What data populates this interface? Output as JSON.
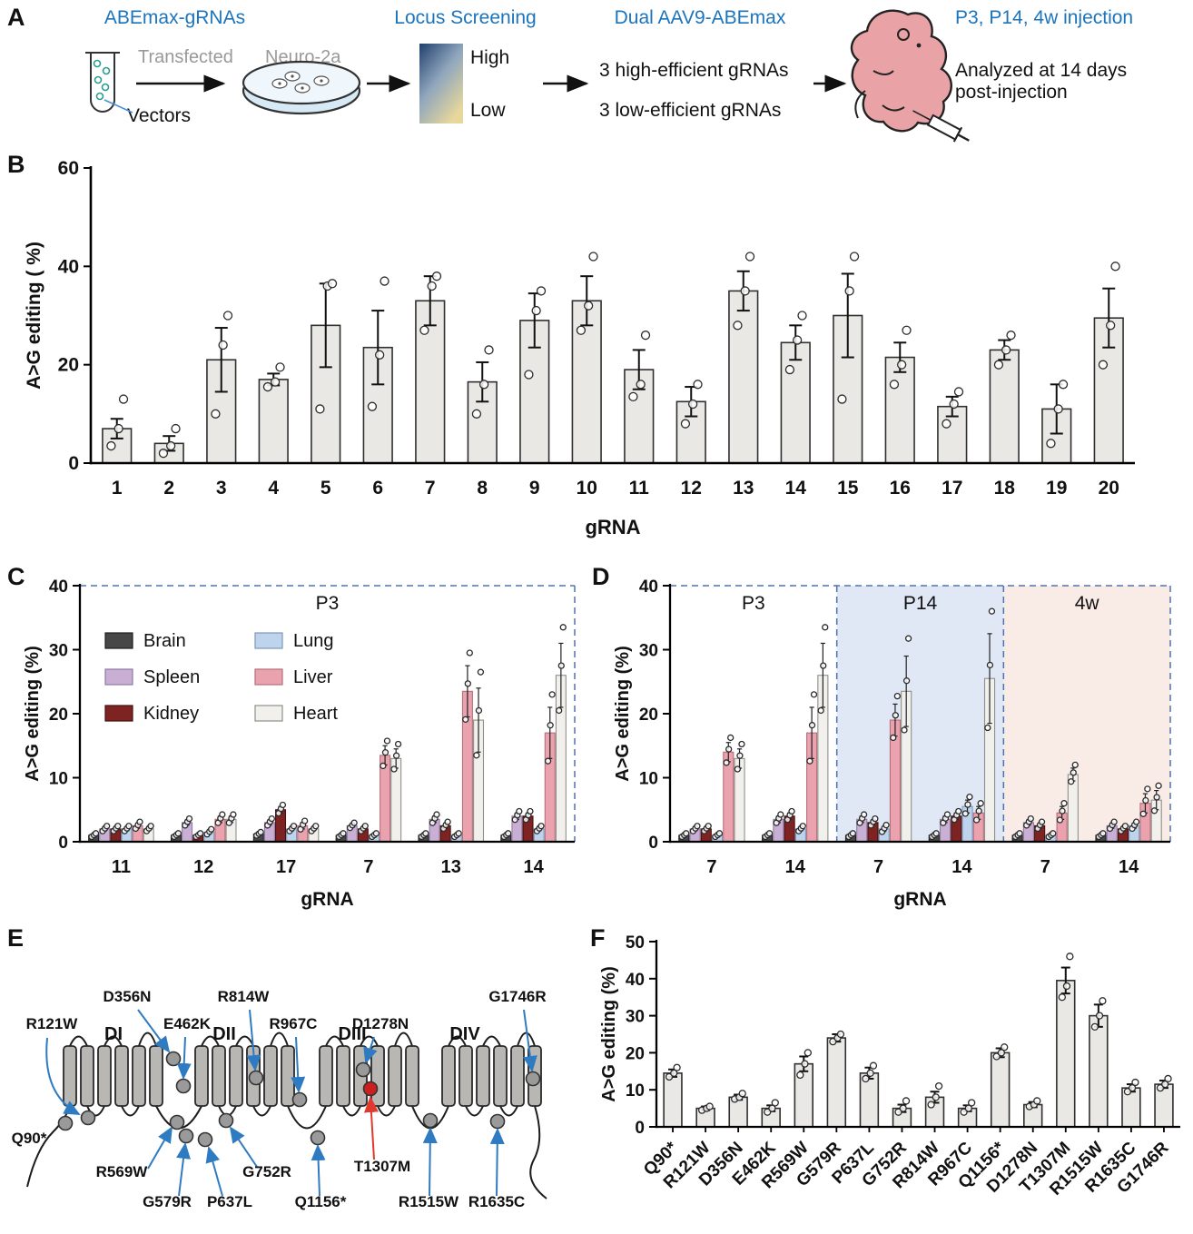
{
  "colors": {
    "accent_blue": "#1b74bc",
    "gray_text": "#999999",
    "bar_fill": "#e9e8e4",
    "dash_blue": "#5272ad",
    "p14_bg": "#e0e8f5",
    "w4_bg": "#f9ebe6",
    "arrow_blue": "#2f7bc1",
    "mutation_red": "#e0392e"
  },
  "panelA": {
    "label": "A",
    "abemax_title": "ABEmax-gRNAs",
    "transfected": "Transfected",
    "neuro2a": "Neuro-2a",
    "vectors": "Vectors",
    "locus_title": "Locus Screening",
    "high": "High",
    "low": "Low",
    "dual_title": "Dual AAV9-ABEmax",
    "line_high": "3 high-efficient gRNAs",
    "line_low": "3 low-efficient gRNAs",
    "injection_title": "P3, P14, 4w injection",
    "analyzed": "Analyzed at 14 days\npost-injection"
  },
  "panelB": {
    "label": "B"
  },
  "panelC": {
    "label": "C"
  },
  "panelD": {
    "label": "D"
  },
  "panelE": {
    "label": "E",
    "domain_labels": [
      "DI",
      "DII",
      "DIII",
      "DIV"
    ],
    "accent": "#2f7bc1",
    "red": "#e0392e",
    "mutations": [
      {
        "name": "Q90*"
      },
      {
        "name": "R121W"
      },
      {
        "name": "D356N"
      },
      {
        "name": "E462K"
      },
      {
        "name": "R569W"
      },
      {
        "name": "G579R"
      },
      {
        "name": "P637L"
      },
      {
        "name": "G752R"
      },
      {
        "name": "R814W"
      },
      {
        "name": "R967C"
      },
      {
        "name": "Q1156*"
      },
      {
        "name": "D1278N"
      },
      {
        "name": "T1307M",
        "red": true
      },
      {
        "name": "R1515W"
      },
      {
        "name": "R1635C"
      },
      {
        "name": "G1746R"
      }
    ]
  },
  "panelF": {
    "label": "F"
  },
  "chart_data": [
    {
      "id": "B",
      "type": "bar",
      "title": "",
      "xlabel": "gRNA",
      "ylabel": "A>G editing ( %)",
      "ylim": [
        0,
        60
      ],
      "yticks": [
        0,
        20,
        40,
        60
      ],
      "bar_fill": "#e9e8e4",
      "categories": [
        "1",
        "2",
        "3",
        "4",
        "5",
        "6",
        "7",
        "8",
        "9",
        "10",
        "11",
        "12",
        "13",
        "14",
        "15",
        "16",
        "17",
        "18",
        "19",
        "20"
      ],
      "values": [
        7,
        4,
        21,
        17,
        28,
        23.5,
        33,
        16.5,
        29,
        33,
        19,
        12.5,
        35,
        24.5,
        30,
        21.5,
        11.5,
        23,
        11,
        29.5
      ],
      "errors": [
        2,
        1.5,
        6.5,
        1.2,
        8.5,
        7.5,
        5,
        4,
        5.5,
        5,
        4,
        3,
        4,
        3.5,
        8.5,
        3,
        2,
        2,
        5,
        6
      ],
      "points": [
        [
          3.5,
          7,
          13
        ],
        [
          2,
          3.5,
          7
        ],
        [
          10,
          24,
          30
        ],
        [
          15.5,
          16.5,
          19.5
        ],
        [
          11,
          36,
          36.5
        ],
        [
          11.5,
          22,
          37
        ],
        [
          27,
          36,
          38
        ],
        [
          10,
          16,
          23
        ],
        [
          18,
          31,
          35
        ],
        [
          27,
          32,
          42
        ],
        [
          13.5,
          16,
          26
        ],
        [
          8,
          12,
          16
        ],
        [
          28,
          35,
          42
        ],
        [
          19,
          25,
          30
        ],
        [
          13,
          35,
          42
        ],
        [
          16,
          20,
          27
        ],
        [
          8,
          12,
          14.5
        ],
        [
          20,
          23,
          26
        ],
        [
          4,
          11,
          16
        ],
        [
          20,
          28,
          40
        ]
      ]
    },
    {
      "id": "C",
      "type": "grouped_bar",
      "title": "P3",
      "xlabel": "gRNA",
      "ylabel": "A>G editing (%)",
      "ylim": [
        0,
        40
      ],
      "yticks": [
        0,
        10,
        20,
        30,
        40
      ],
      "dashed_frame": true,
      "dash_color": "#5272ad",
      "legend": true,
      "categories": [
        "11",
        "12",
        "17",
        "7",
        "13",
        "14"
      ],
      "series": [
        {
          "name": "Brain",
          "color": "#474747",
          "stroke": "#1f1f1f",
          "values": [
            1,
            1,
            1.2,
            1,
            1,
            1
          ],
          "errors": [
            0.2,
            0.2,
            0.2,
            0.2,
            0.2,
            0.2
          ]
        },
        {
          "name": "Spleen",
          "color": "#c9afd4",
          "stroke": "#8f7aa3",
          "values": [
            2,
            3,
            3,
            2.5,
            3.5,
            4
          ],
          "errors": [
            0.3,
            0.4,
            0.4,
            0.3,
            0.5,
            0.5
          ]
        },
        {
          "name": "Kidney",
          "color": "#7d2422",
          "stroke": "#47100f",
          "values": [
            2,
            1,
            5,
            2,
            2.5,
            4
          ],
          "errors": [
            0.3,
            0.2,
            0.5,
            0.3,
            0.4,
            0.5
          ]
        },
        {
          "name": "Lung",
          "color": "#bed3ec",
          "stroke": "#7e97ba",
          "values": [
            2,
            1.5,
            2,
            1,
            1,
            2
          ],
          "errors": [
            0.3,
            0.3,
            0.3,
            0.2,
            0.2,
            0.3
          ]
        },
        {
          "name": "Liver",
          "color": "#e9a2ae",
          "stroke": "#b56f7b",
          "values": [
            2.5,
            3.5,
            2.5,
            13.5,
            23.5,
            17
          ],
          "errors": [
            0.4,
            0.5,
            0.5,
            1.5,
            4,
            4
          ]
        },
        {
          "name": "Heart",
          "color": "#f2f0ed",
          "stroke": "#8f8f89",
          "values": [
            2,
            3.5,
            2,
            13,
            19,
            26
          ],
          "errors": [
            0.3,
            0.5,
            0.3,
            1.5,
            5,
            5
          ]
        }
      ]
    },
    {
      "id": "D",
      "type": "grouped_bar",
      "xlabel": "gRNA",
      "ylabel": "A>G editing (%)",
      "ylim": [
        0,
        40
      ],
      "yticks": [
        0,
        10,
        20,
        30,
        40
      ],
      "dashed_frame": true,
      "dash_color": "#5272ad",
      "sections": [
        {
          "label": "P3",
          "from": 0,
          "count": 2,
          "bg": null
        },
        {
          "label": "P14",
          "from": 2,
          "count": 2,
          "bg": "#e0e8f5"
        },
        {
          "label": "4w",
          "from": 4,
          "count": 2,
          "bg": "#f9ebe6"
        }
      ],
      "categories": [
        "7",
        "14",
        "7",
        "14",
        "7",
        "14"
      ],
      "series": [
        {
          "name": "Brain",
          "color": "#474747",
          "stroke": "#1f1f1f",
          "values": [
            1,
            1,
            1,
            1,
            1,
            1
          ],
          "errors": [
            0.2,
            0.2,
            0.2,
            0.2,
            0.2,
            0.2
          ]
        },
        {
          "name": "Spleen",
          "color": "#c9afd4",
          "stroke": "#8f7aa3",
          "values": [
            2,
            3.5,
            3.5,
            3.5,
            3,
            2.5
          ],
          "errors": [
            0.3,
            0.5,
            0.5,
            0.5,
            0.4,
            0.4
          ]
        },
        {
          "name": "Kidney",
          "color": "#7d2422",
          "stroke": "#47100f",
          "values": [
            2,
            4,
            3,
            4,
            2.5,
            2
          ],
          "errors": [
            0.3,
            0.5,
            0.4,
            0.5,
            0.4,
            0.3
          ]
        },
        {
          "name": "Lung",
          "color": "#bed3ec",
          "stroke": "#7e97ba",
          "values": [
            1,
            2,
            2,
            5.5,
            1,
            2.5
          ],
          "errors": [
            0.2,
            0.3,
            0.4,
            1,
            0.2,
            0.4
          ]
        },
        {
          "name": "Liver",
          "color": "#e9a2ae",
          "stroke": "#b56f7b",
          "values": [
            14,
            17,
            19,
            4.5,
            4.5,
            6
          ],
          "errors": [
            1.5,
            4,
            2.5,
            1,
            1,
            1.5
          ]
        },
        {
          "name": "Heart",
          "color": "#f2f0ed",
          "stroke": "#8f8f89",
          "values": [
            13,
            26,
            23.5,
            25.5,
            10.5,
            6.5
          ],
          "errors": [
            1.5,
            5,
            5.5,
            7,
            1,
            1.5
          ]
        }
      ]
    },
    {
      "id": "F",
      "type": "bar",
      "xlabel": "",
      "ylabel": "A>G editing (%)",
      "ylim": [
        0,
        50
      ],
      "yticks": [
        0,
        10,
        20,
        30,
        40,
        50
      ],
      "bar_fill": "#e9e8e4",
      "categories": [
        "Q90*",
        "R121W",
        "D356N",
        "E462K",
        "R569W",
        "G579R",
        "P637L",
        "G752R",
        "R814W",
        "R967C",
        "Q1156*",
        "D1278N",
        "T1307M",
        "R1515W",
        "R1635C",
        "G1746R"
      ],
      "values": [
        14.5,
        5,
        8,
        5,
        17,
        24,
        14.5,
        5,
        8,
        5,
        20,
        6,
        39.5,
        30,
        10.5,
        11.5
      ],
      "errors": [
        1,
        0.5,
        0.7,
        0.8,
        2,
        1,
        1.5,
        1,
        1.5,
        0.8,
        1.2,
        0.7,
        3.5,
        3,
        1,
        1
      ],
      "points": [
        [
          13.5,
          14.5,
          16
        ],
        [
          4.5,
          5,
          5.5
        ],
        [
          7.5,
          8,
          9
        ],
        [
          4,
          5,
          6.5
        ],
        [
          14,
          17,
          20
        ],
        [
          23,
          24,
          25
        ],
        [
          13,
          14.5,
          16.5
        ],
        [
          4,
          5,
          7
        ],
        [
          6,
          8,
          11
        ],
        [
          4,
          5,
          6.5
        ],
        [
          19,
          20,
          21.5
        ],
        [
          5.5,
          6,
          7
        ],
        [
          35,
          38,
          46
        ],
        [
          27,
          30,
          34
        ],
        [
          9.5,
          10.5,
          12
        ],
        [
          10.5,
          11.5,
          13
        ]
      ]
    }
  ]
}
